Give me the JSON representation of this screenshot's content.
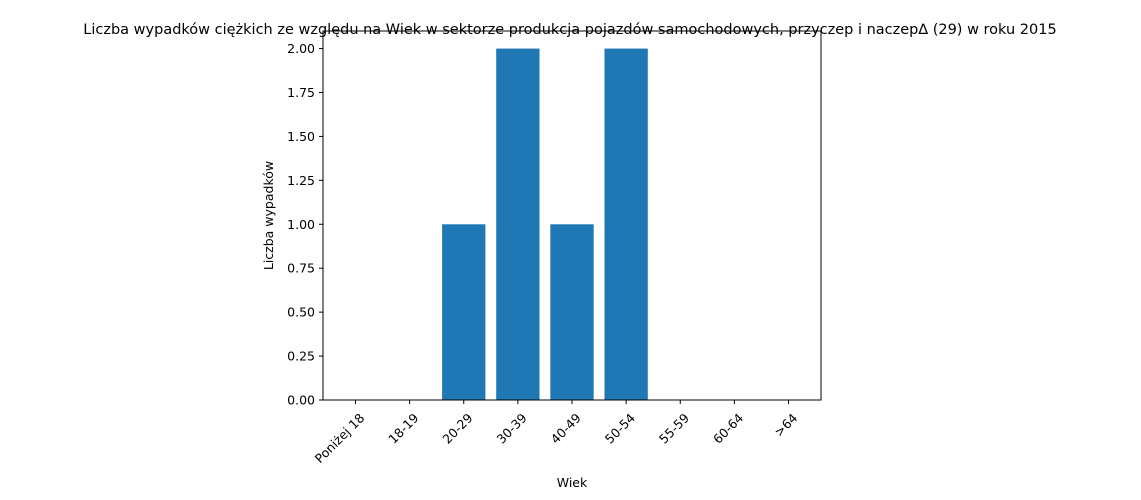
{
  "chart_data": {
    "type": "bar",
    "title": "Liczba wypadków ciężkich ze względu na Wiek w sektorze produkcja pojazdów samochodowych, przyczep i naczep∆ (29) w roku 2015",
    "xlabel": "Wiek",
    "ylabel": "Liczba wypadków",
    "categories": [
      "Poniżej 18",
      "18-19",
      "20-29",
      "30-39",
      "40-49",
      "50-54",
      "55-59",
      "60-64",
      ">64"
    ],
    "values": [
      0,
      0,
      1,
      2,
      1,
      2,
      0,
      0,
      0
    ],
    "ylim": [
      0,
      2.1
    ],
    "yticks": [
      "0.00",
      "0.25",
      "0.50",
      "0.75",
      "1.00",
      "1.25",
      "1.50",
      "1.75",
      "2.00"
    ],
    "grid": false,
    "bar_color": "#1f77b4",
    "axis_color": "#000000"
  }
}
